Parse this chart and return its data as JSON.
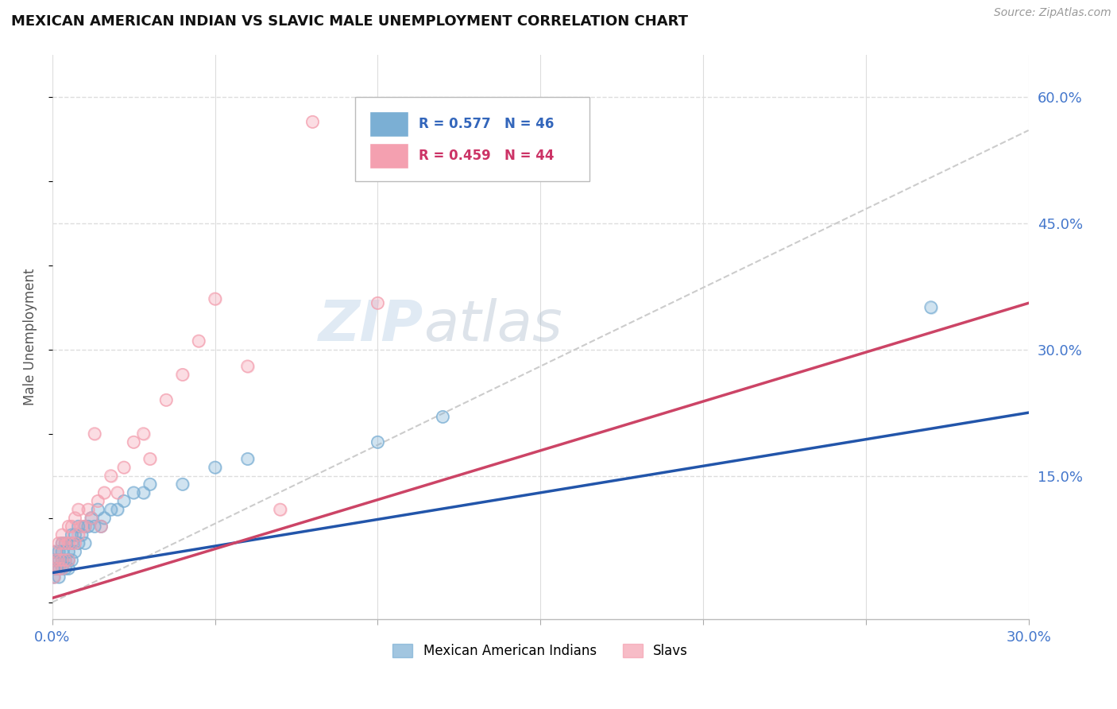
{
  "title": "MEXICAN AMERICAN INDIAN VS SLAVIC MALE UNEMPLOYMENT CORRELATION CHART",
  "source": "Source: ZipAtlas.com",
  "ylabel": "Male Unemployment",
  "xlim": [
    0.0,
    0.3
  ],
  "ylim": [
    -0.02,
    0.65
  ],
  "xticks": [
    0.0,
    0.05,
    0.1,
    0.15,
    0.2,
    0.25,
    0.3
  ],
  "xtick_labels": [
    "0.0%",
    "",
    "",
    "",
    "",
    "",
    "30.0%"
  ],
  "ytick_labels_right": [
    "60.0%",
    "45.0%",
    "30.0%",
    "15.0%"
  ],
  "ytick_values_right": [
    0.6,
    0.45,
    0.3,
    0.15
  ],
  "watermark_zip": "ZIP",
  "watermark_atlas": "atlas",
  "blue_color": "#7BAFD4",
  "pink_color": "#F4A0B0",
  "blue_line_color": "#2255AA",
  "pink_line_color": "#CC4466",
  "dashed_line_color": "#CCCCCC",
  "grid_color": "#DDDDDD",
  "background_color": "#FFFFFF",
  "mexican_x": [
    0.0005,
    0.001,
    0.001,
    0.001,
    0.002,
    0.002,
    0.002,
    0.002,
    0.003,
    0.003,
    0.003,
    0.003,
    0.004,
    0.004,
    0.004,
    0.005,
    0.005,
    0.005,
    0.006,
    0.006,
    0.006,
    0.007,
    0.007,
    0.008,
    0.008,
    0.009,
    0.01,
    0.01,
    0.011,
    0.012,
    0.013,
    0.014,
    0.015,
    0.016,
    0.018,
    0.02,
    0.022,
    0.025,
    0.028,
    0.03,
    0.04,
    0.05,
    0.06,
    0.1,
    0.12,
    0.27
  ],
  "mexican_y": [
    0.03,
    0.04,
    0.05,
    0.06,
    0.03,
    0.04,
    0.05,
    0.06,
    0.04,
    0.05,
    0.06,
    0.07,
    0.04,
    0.05,
    0.07,
    0.04,
    0.05,
    0.06,
    0.05,
    0.07,
    0.08,
    0.06,
    0.08,
    0.07,
    0.09,
    0.08,
    0.07,
    0.09,
    0.09,
    0.1,
    0.09,
    0.11,
    0.09,
    0.1,
    0.11,
    0.11,
    0.12,
    0.13,
    0.13,
    0.14,
    0.14,
    0.16,
    0.17,
    0.19,
    0.22,
    0.35
  ],
  "slavic_x": [
    0.0005,
    0.001,
    0.001,
    0.001,
    0.002,
    0.002,
    0.002,
    0.003,
    0.003,
    0.003,
    0.003,
    0.004,
    0.004,
    0.005,
    0.005,
    0.005,
    0.006,
    0.006,
    0.007,
    0.007,
    0.008,
    0.008,
    0.009,
    0.01,
    0.011,
    0.012,
    0.013,
    0.014,
    0.015,
    0.016,
    0.018,
    0.02,
    0.022,
    0.025,
    0.028,
    0.03,
    0.035,
    0.04,
    0.045,
    0.05,
    0.06,
    0.07,
    0.08,
    0.1
  ],
  "slavic_y": [
    0.03,
    0.04,
    0.05,
    0.06,
    0.04,
    0.05,
    0.07,
    0.04,
    0.05,
    0.07,
    0.08,
    0.05,
    0.07,
    0.05,
    0.07,
    0.09,
    0.07,
    0.09,
    0.07,
    0.1,
    0.08,
    0.11,
    0.09,
    0.09,
    0.11,
    0.1,
    0.2,
    0.12,
    0.09,
    0.13,
    0.15,
    0.13,
    0.16,
    0.19,
    0.2,
    0.17,
    0.24,
    0.27,
    0.31,
    0.36,
    0.28,
    0.11,
    0.57,
    0.355
  ],
  "blue_line_x0": 0.0,
  "blue_line_y0": 0.035,
  "blue_line_x1": 0.3,
  "blue_line_y1": 0.225,
  "pink_line_x0": 0.0,
  "pink_line_y0": 0.005,
  "pink_line_x1": 0.3,
  "pink_line_y1": 0.355,
  "dash_line_x0": 0.0,
  "dash_line_y0": 0.0,
  "dash_line_x1": 0.3,
  "dash_line_y1": 0.56
}
